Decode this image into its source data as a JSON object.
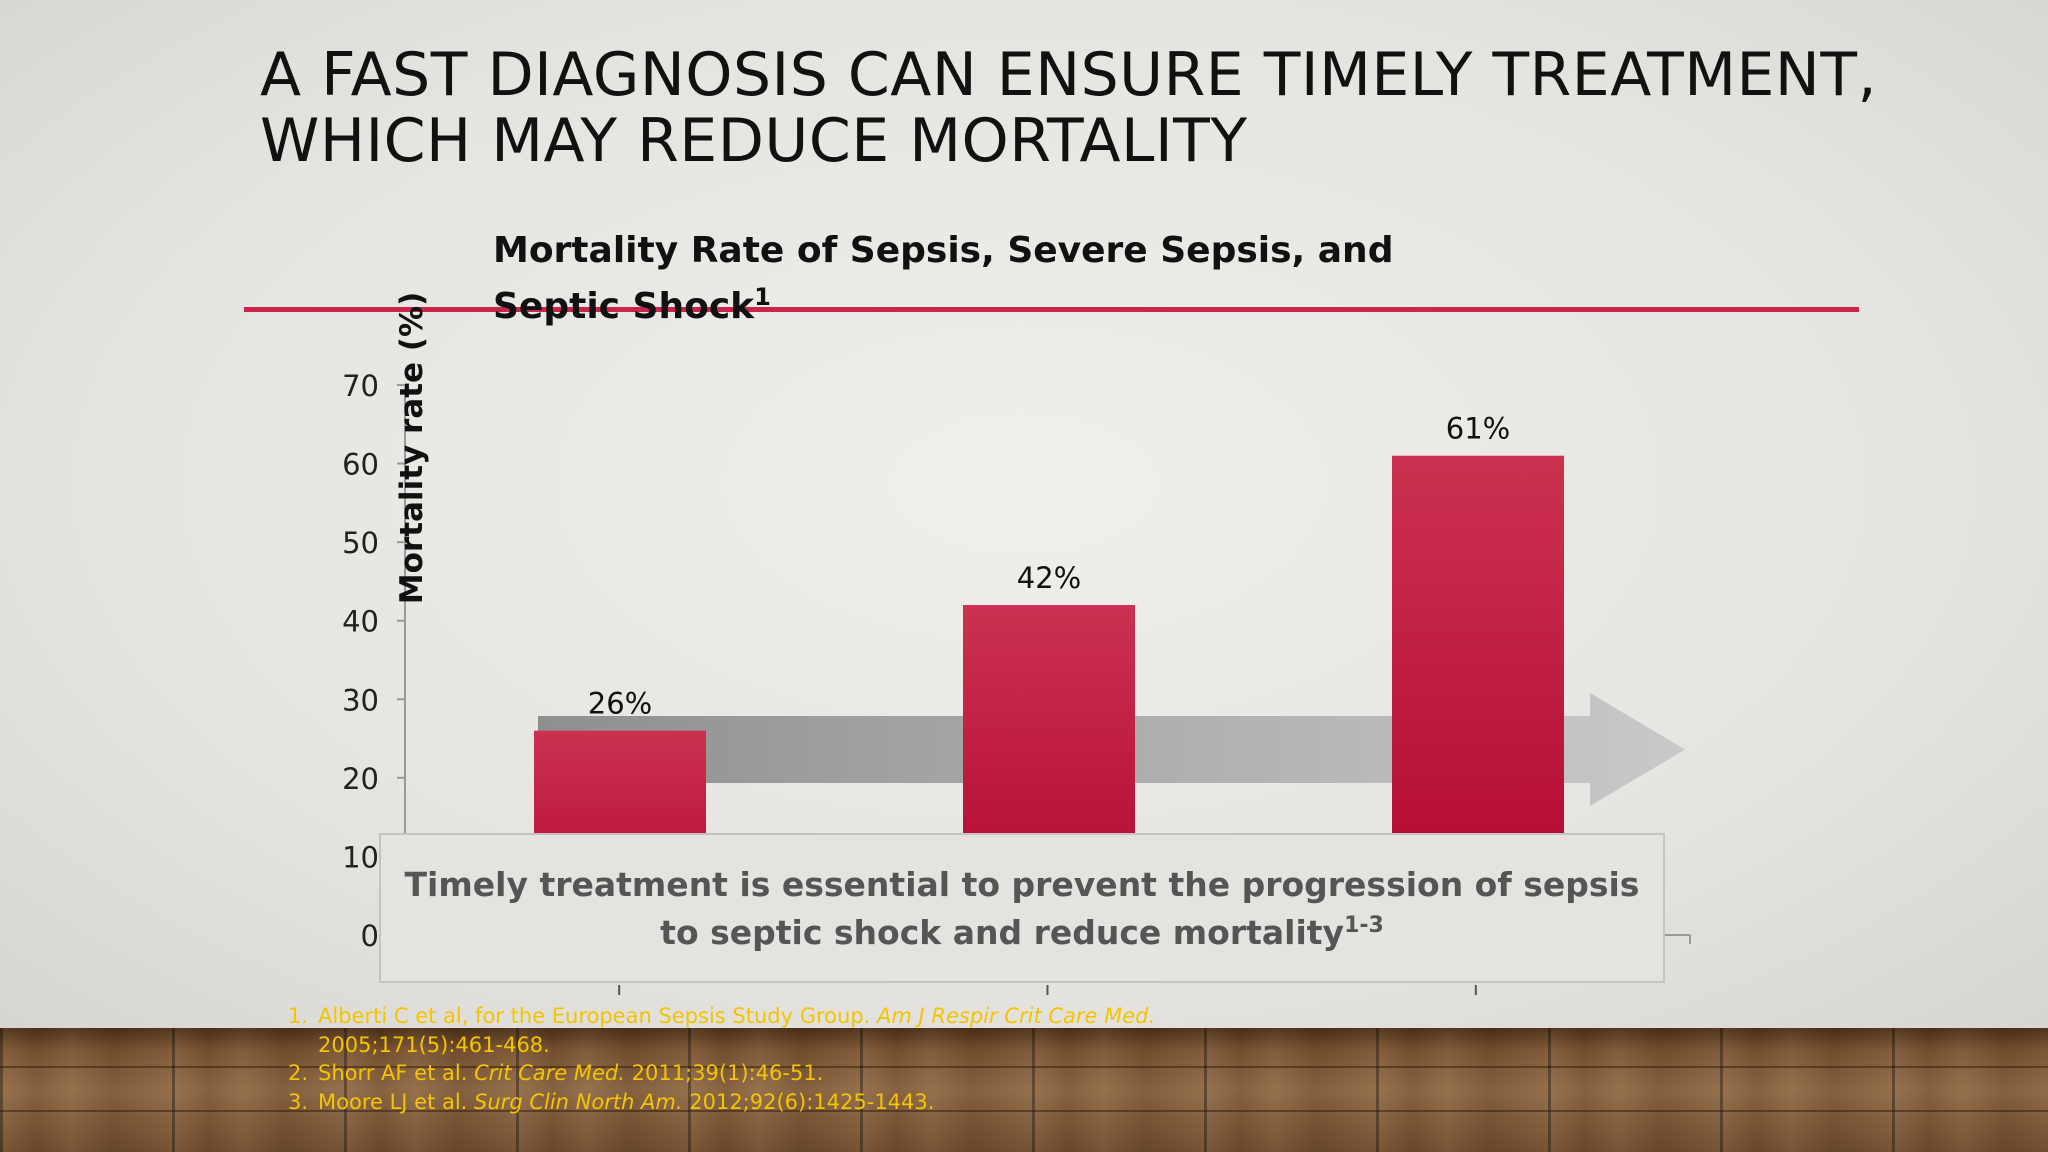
{
  "slide": {
    "title_line1": "A FAST DIAGNOSIS CAN ENSURE TIMELY TREATMENT,",
    "title_line2": "WHICH MAY REDUCE MORTALITY",
    "chart_title_main": "Mortality Rate of Sepsis, Severe Sepsis, and Septic Shock",
    "chart_title_sup": "1",
    "callout_main": "Timely treatment is essential to prevent the progression of sepsis to septic shock and reduce mortality",
    "callout_sup": "1-3"
  },
  "chart_data": {
    "type": "bar",
    "title": "Mortality Rate of Sepsis, Severe Sepsis, and Septic Shock",
    "ylabel": "Mortality rate (%)",
    "xlabel": "",
    "ylim": [
      0,
      70
    ],
    "yticks": [
      0,
      10,
      20,
      30,
      40,
      50,
      60,
      70
    ],
    "values": [
      26,
      42,
      61
    ],
    "data_labels": [
      "26%",
      "42%",
      "61%"
    ],
    "bar_color": "#c01f41",
    "arrow_color": "#a8a8a8"
  },
  "references": [
    {
      "num": "1.",
      "pre": "Alberti C et al, for the European Sepsis Study Group. ",
      "journal": "Am J Respir Crit Care Med.",
      "post": " 2005;171(5):461-468."
    },
    {
      "num": "2.",
      "pre": "Shorr AF et al. ",
      "journal": "Crit Care Med.",
      "post": " 2011;39(1):46-51."
    },
    {
      "num": "3.",
      "pre": "Moore LJ et al. ",
      "journal": "Surg Clin North Am.",
      "post": " 2012;92(6):1425-1443."
    }
  ],
  "colors": {
    "accent_red": "#c8264a",
    "reference_yellow": "#f2c500"
  }
}
